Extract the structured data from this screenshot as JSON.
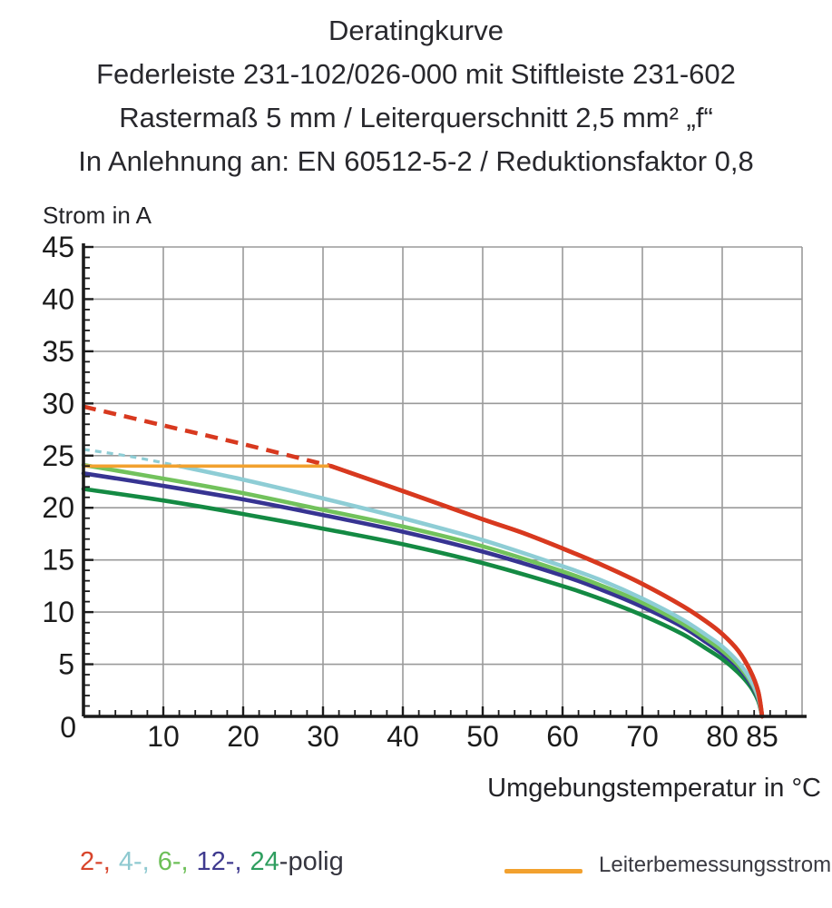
{
  "header": {
    "line1": "Deratingkurve",
    "line2": "Federleiste 231-102/026-000 mit Stiftleiste 231-602",
    "line3": "Rastermaß 5 mm / Leiterquerschnitt 2,5 mm² „f“",
    "line4": "In Anlehnung an: EN 60512-5-2 / Reduktionsfaktor 0,8"
  },
  "chart": {
    "y_axis_label": "Strom in A",
    "x_axis_label": "Umgebungstemperatur in °C"
  },
  "legend": {
    "poles_items": [
      {
        "text": "2-,",
        "color": "#d8452c"
      },
      {
        "text": "4-,",
        "color": "#8ec9d0"
      },
      {
        "text": "6-,",
        "color": "#6dbf58"
      },
      {
        "text": "12-,",
        "color": "#3f3a8f"
      },
      {
        "text": "24",
        "color": "#2f9e5f"
      }
    ],
    "poles_suffix": "-polig",
    "rated_current_label": "Leiterbemessungsstrom",
    "rated_current_color": "#f2a12f"
  },
  "chart_data": {
    "type": "line",
    "title": "Deratingkurve",
    "subtitle": "Federleiste 231-102/026-000 mit Stiftleiste 231-602 / Rastermaß 5 mm / Leiterquerschnitt 2,5 mm² „f“ / In Anlehnung an: EN 60512-5-2 / Reduktionsfaktor 0,8",
    "xlabel": "Umgebungstemperatur in °C",
    "ylabel": "Strom in A",
    "xlim": [
      0,
      90
    ],
    "ylim": [
      0,
      45
    ],
    "x_ticks": [
      10,
      20,
      30,
      40,
      50,
      60,
      70,
      80,
      85
    ],
    "y_ticks": [
      5,
      10,
      15,
      20,
      25,
      30,
      35,
      40,
      45
    ],
    "origin_label": "0",
    "x_gridlines": [
      10,
      20,
      30,
      40,
      50,
      60,
      70,
      80,
      90
    ],
    "y_gridlines": [
      5,
      10,
      15,
      20,
      25,
      30,
      35,
      40,
      45
    ],
    "grid_on": true,
    "grid_color": "#9a9a9a",
    "axis_color": "#1b1b1b",
    "x_minor_step": 2,
    "y_minor_step": 1,
    "rated_current_line": {
      "name": "Leiterbemessungsstrom",
      "color": "#f2a12f",
      "value_a": 24,
      "points": [
        [
          0,
          24
        ],
        [
          31,
          24
        ]
      ]
    },
    "series": [
      {
        "name": "2-polig",
        "color": "#d8391f",
        "dashed_points": [
          [
            0,
            29.7
          ],
          [
            10,
            27.9
          ],
          [
            20,
            26.1
          ],
          [
            31,
            24.0
          ]
        ],
        "points": [
          [
            31,
            24.0
          ],
          [
            40,
            21.6
          ],
          [
            50,
            18.9
          ],
          [
            55,
            17.6
          ],
          [
            60,
            16.1
          ],
          [
            65,
            14.5
          ],
          [
            70,
            12.7
          ],
          [
            75,
            10.6
          ],
          [
            78,
            9.1
          ],
          [
            80,
            7.9
          ],
          [
            82,
            6.3
          ],
          [
            83.5,
            4.4
          ],
          [
            84.5,
            2.4
          ],
          [
            85,
            0
          ]
        ]
      },
      {
        "name": "4-polig",
        "color": "#8ecdd5",
        "dashed_points": [
          [
            0,
            25.6
          ],
          [
            6,
            24.9
          ],
          [
            12,
            24.0
          ]
        ],
        "points": [
          [
            12,
            24.0
          ],
          [
            20,
            22.7
          ],
          [
            30,
            20.9
          ],
          [
            40,
            19.0
          ],
          [
            50,
            16.9
          ],
          [
            60,
            14.4
          ],
          [
            65,
            13.0
          ],
          [
            70,
            11.3
          ],
          [
            75,
            9.3
          ],
          [
            78,
            7.8
          ],
          [
            80,
            6.7
          ],
          [
            82,
            5.2
          ],
          [
            83.5,
            3.6
          ],
          [
            84.5,
            1.9
          ],
          [
            85,
            0
          ]
        ]
      },
      {
        "name": "6-polig",
        "color": "#72c25c",
        "points": [
          [
            0,
            24.1
          ],
          [
            10,
            22.8
          ],
          [
            20,
            21.4
          ],
          [
            30,
            19.8
          ],
          [
            40,
            18.2
          ],
          [
            50,
            16.3
          ],
          [
            60,
            13.9
          ],
          [
            65,
            12.5
          ],
          [
            70,
            10.9
          ],
          [
            75,
            8.9
          ],
          [
            78,
            7.4
          ],
          [
            80,
            6.3
          ],
          [
            82,
            4.9
          ],
          [
            83.5,
            3.4
          ],
          [
            84.5,
            1.8
          ],
          [
            85,
            0
          ]
        ]
      },
      {
        "name": "12-polig",
        "color": "#373492",
        "points": [
          [
            0,
            23.3
          ],
          [
            10,
            22.1
          ],
          [
            20,
            20.8
          ],
          [
            30,
            19.3
          ],
          [
            40,
            17.7
          ],
          [
            50,
            15.8
          ],
          [
            60,
            13.5
          ],
          [
            65,
            12.1
          ],
          [
            70,
            10.5
          ],
          [
            75,
            8.6
          ],
          [
            78,
            7.1
          ],
          [
            80,
            6.0
          ],
          [
            82,
            4.7
          ],
          [
            83.5,
            3.2
          ],
          [
            84.5,
            1.7
          ],
          [
            85,
            0
          ]
        ]
      },
      {
        "name": "24-polig",
        "color": "#148a43",
        "points": [
          [
            0,
            21.8
          ],
          [
            10,
            20.7
          ],
          [
            20,
            19.4
          ],
          [
            30,
            18.0
          ],
          [
            40,
            16.5
          ],
          [
            50,
            14.7
          ],
          [
            60,
            12.5
          ],
          [
            65,
            11.2
          ],
          [
            70,
            9.7
          ],
          [
            75,
            7.9
          ],
          [
            78,
            6.5
          ],
          [
            80,
            5.5
          ],
          [
            82,
            4.2
          ],
          [
            83.5,
            2.9
          ],
          [
            84.5,
            1.5
          ],
          [
            85,
            0
          ]
        ]
      }
    ]
  }
}
